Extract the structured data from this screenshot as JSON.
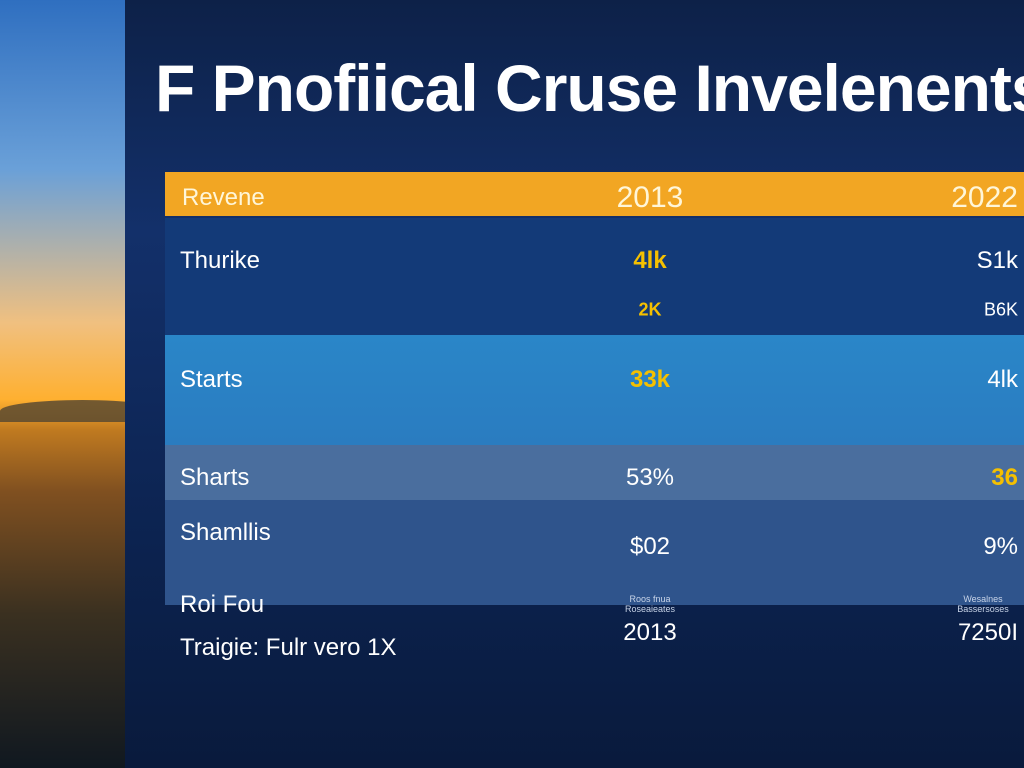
{
  "title": "F Pnofiical Cruse Invelenents",
  "table": {
    "header": [
      "Revene",
      "2013",
      "2022"
    ],
    "rows": [
      {
        "label": "Thurike",
        "cells": [
          "4lk",
          "S1k"
        ]
      },
      {
        "cells": [
          "2K",
          "B6K"
        ]
      },
      {
        "label": "Starts",
        "cells": [
          "33k",
          "4lk"
        ]
      },
      {
        "label": "Sharts",
        "cells": [
          "53%",
          "36"
        ]
      },
      {
        "label": "Shamllis",
        "cells": [
          "$02",
          "9%"
        ]
      },
      {
        "label": "Roi Fou",
        "cells": [
          "Roos fnua Roseaieates",
          "Wesalnes Bassersoses"
        ]
      },
      {
        "label": "Traigie: Fulr vero 1X",
        "cells": [
          "2013",
          "7250I"
        ]
      }
    ]
  }
}
